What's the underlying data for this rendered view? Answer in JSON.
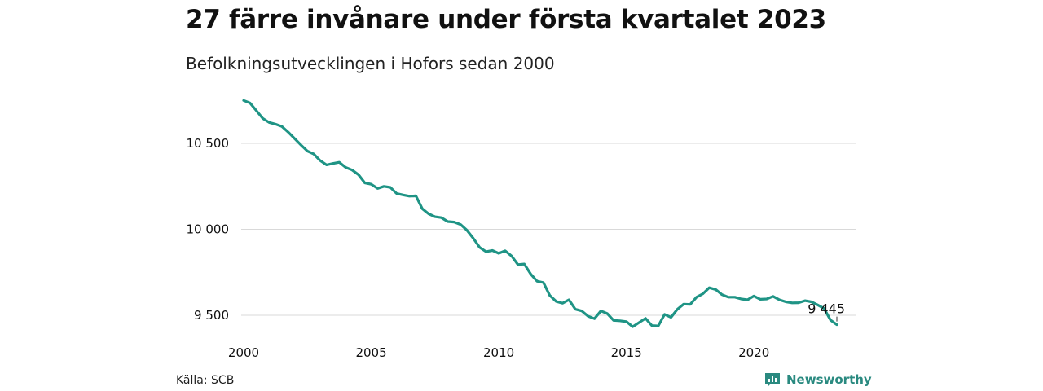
{
  "header": {
    "title": "27 färre invånare under första kvartalet 2023",
    "subtitle": "Befolkningsutvecklingen i Hofors sedan 2000"
  },
  "footer": {
    "source": "Källa: SCB",
    "brand": "Newsworthy"
  },
  "colors": {
    "line": "#1f9485",
    "grid": "#d9d9d9",
    "brand": "#2a8a80"
  },
  "chart_data": {
    "type": "line",
    "title": "27 färre invånare under första kvartalet 2023",
    "subtitle": "Befolkningsutvecklingen i Hofors sedan 2000",
    "xlabel": "",
    "ylabel": "",
    "xlim": [
      2000,
      2023.25
    ],
    "ylim": [
      9420,
      10770
    ],
    "grid": true,
    "legend": "none",
    "x_ticks": [
      2000,
      2005,
      2010,
      2015,
      2020
    ],
    "x_tick_labels": [
      "2000",
      "2005",
      "2010",
      "2015",
      "2020"
    ],
    "y_ticks": [
      9500,
      10000,
      10500
    ],
    "y_tick_labels": [
      "9 500",
      "10 000",
      "10 500"
    ],
    "end_label": "9 445",
    "series": [
      {
        "values": [
          [
            2000.0,
            10750
          ],
          [
            2000.25,
            10735
          ],
          [
            2000.5,
            10690
          ],
          [
            2000.75,
            10645
          ],
          [
            2001.0,
            10622
          ],
          [
            2001.25,
            10612
          ],
          [
            2001.5,
            10598
          ],
          [
            2001.75,
            10565
          ],
          [
            2002.0,
            10528
          ],
          [
            2002.25,
            10490
          ],
          [
            2002.5,
            10455
          ],
          [
            2002.75,
            10438
          ],
          [
            2003.0,
            10400
          ],
          [
            2003.25,
            10375
          ],
          [
            2003.5,
            10383
          ],
          [
            2003.75,
            10390
          ],
          [
            2004.0,
            10360
          ],
          [
            2004.25,
            10345
          ],
          [
            2004.5,
            10318
          ],
          [
            2004.75,
            10270
          ],
          [
            2005.0,
            10262
          ],
          [
            2005.25,
            10238
          ],
          [
            2005.5,
            10250
          ],
          [
            2005.75,
            10244
          ],
          [
            2006.0,
            10208
          ],
          [
            2006.25,
            10200
          ],
          [
            2006.5,
            10193
          ],
          [
            2006.75,
            10195
          ],
          [
            2007.0,
            10120
          ],
          [
            2007.25,
            10090
          ],
          [
            2007.5,
            10073
          ],
          [
            2007.75,
            10068
          ],
          [
            2008.0,
            10045
          ],
          [
            2008.25,
            10042
          ],
          [
            2008.5,
            10028
          ],
          [
            2008.75,
            9995
          ],
          [
            2009.0,
            9948
          ],
          [
            2009.25,
            9895
          ],
          [
            2009.5,
            9870
          ],
          [
            2009.75,
            9877
          ],
          [
            2010.0,
            9860
          ],
          [
            2010.25,
            9875
          ],
          [
            2010.5,
            9845
          ],
          [
            2010.75,
            9795
          ],
          [
            2011.0,
            9798
          ],
          [
            2011.25,
            9740
          ],
          [
            2011.5,
            9698
          ],
          [
            2011.75,
            9690
          ],
          [
            2012.0,
            9615
          ],
          [
            2012.25,
            9580
          ],
          [
            2012.5,
            9570
          ],
          [
            2012.75,
            9590
          ],
          [
            2013.0,
            9535
          ],
          [
            2013.25,
            9525
          ],
          [
            2013.5,
            9495
          ],
          [
            2013.75,
            9480
          ],
          [
            2014.0,
            9525
          ],
          [
            2014.25,
            9510
          ],
          [
            2014.5,
            9470
          ],
          [
            2014.75,
            9468
          ],
          [
            2015.0,
            9463
          ],
          [
            2015.25,
            9433
          ],
          [
            2015.5,
            9458
          ],
          [
            2015.75,
            9482
          ],
          [
            2016.0,
            9440
          ],
          [
            2016.25,
            9438
          ],
          [
            2016.5,
            9505
          ],
          [
            2016.75,
            9488
          ],
          [
            2017.0,
            9535
          ],
          [
            2017.25,
            9565
          ],
          [
            2017.5,
            9563
          ],
          [
            2017.75,
            9605
          ],
          [
            2018.0,
            9625
          ],
          [
            2018.25,
            9660
          ],
          [
            2018.5,
            9650
          ],
          [
            2018.75,
            9620
          ],
          [
            2019.0,
            9605
          ],
          [
            2019.25,
            9605
          ],
          [
            2019.5,
            9595
          ],
          [
            2019.75,
            9590
          ],
          [
            2020.0,
            9612
          ],
          [
            2020.25,
            9593
          ],
          [
            2020.5,
            9595
          ],
          [
            2020.75,
            9610
          ],
          [
            2021.0,
            9590
          ],
          [
            2021.25,
            9578
          ],
          [
            2021.5,
            9572
          ],
          [
            2021.75,
            9573
          ],
          [
            2022.0,
            9585
          ],
          [
            2022.25,
            9578
          ],
          [
            2022.5,
            9560
          ],
          [
            2022.75,
            9540
          ],
          [
            2023.0,
            9472
          ],
          [
            2023.25,
            9445
          ]
        ]
      }
    ]
  }
}
